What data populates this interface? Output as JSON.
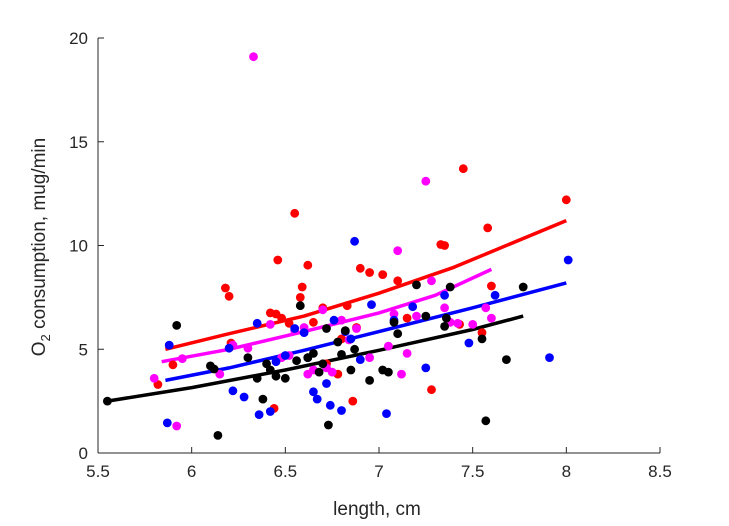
{
  "chart_data": {
    "type": "scatter",
    "xlabel": "length, cm",
    "ylabel_main": "O",
    "ylabel_sub": "2",
    "ylabel_rest": " consumption, mug/min",
    "xlim": [
      5.5,
      8.5
    ],
    "ylim": [
      0,
      20
    ],
    "xticks": [
      5.5,
      6,
      6.5,
      7,
      7.5,
      8,
      8.5
    ],
    "xtick_labels": [
      "5.5",
      "6",
      "6.5",
      "7",
      "7.5",
      "8",
      "8.5"
    ],
    "yticks": [
      0,
      5,
      10,
      15,
      20
    ],
    "ytick_labels": [
      "0",
      "5",
      "10",
      "15",
      "20"
    ],
    "grid": false,
    "legend": "none",
    "series": [
      {
        "color": "#ff0000",
        "fit": [
          [
            5.86,
            5.0
          ],
          [
            6.2,
            5.75
          ],
          [
            6.6,
            6.6
          ],
          [
            7.0,
            7.7
          ],
          [
            7.4,
            8.95
          ],
          [
            8.0,
            11.2
          ]
        ],
        "points": [
          [
            5.82,
            3.3
          ],
          [
            5.9,
            4.25
          ],
          [
            6.18,
            7.95
          ],
          [
            6.2,
            7.55
          ],
          [
            6.21,
            5.3
          ],
          [
            6.42,
            6.75
          ],
          [
            6.44,
            2.15
          ],
          [
            6.45,
            6.7
          ],
          [
            6.46,
            9.3
          ],
          [
            6.48,
            6.5
          ],
          [
            6.52,
            6.25
          ],
          [
            6.55,
            11.55
          ],
          [
            6.58,
            7.5
          ],
          [
            6.59,
            8.0
          ],
          [
            6.62,
            9.05
          ],
          [
            6.65,
            6.3
          ],
          [
            6.7,
            7.0
          ],
          [
            6.72,
            4.3
          ],
          [
            6.78,
            3.8
          ],
          [
            6.8,
            5.5
          ],
          [
            6.83,
            7.1
          ],
          [
            6.86,
            2.5
          ],
          [
            6.88,
            6.05
          ],
          [
            6.9,
            8.9
          ],
          [
            6.95,
            8.7
          ],
          [
            7.02,
            8.6
          ],
          [
            7.1,
            8.3
          ],
          [
            7.15,
            6.5
          ],
          [
            7.28,
            3.05
          ],
          [
            7.33,
            10.05
          ],
          [
            7.35,
            10.0
          ],
          [
            7.43,
            6.2
          ],
          [
            7.45,
            13.7
          ],
          [
            7.55,
            5.8
          ],
          [
            7.58,
            10.85
          ],
          [
            7.6,
            8.05
          ],
          [
            8.0,
            12.2
          ]
        ]
      },
      {
        "color": "#ff00ff",
        "fit": [
          [
            5.84,
            4.4
          ],
          [
            6.2,
            5.0
          ],
          [
            6.6,
            5.85
          ],
          [
            7.0,
            6.75
          ],
          [
            7.3,
            7.6
          ],
          [
            7.6,
            8.85
          ]
        ],
        "points": [
          [
            5.8,
            3.6
          ],
          [
            5.92,
            1.3
          ],
          [
            5.95,
            4.55
          ],
          [
            6.15,
            3.8
          ],
          [
            6.22,
            5.2
          ],
          [
            6.3,
            5.05
          ],
          [
            6.33,
            19.1
          ],
          [
            6.42,
            6.2
          ],
          [
            6.48,
            4.6
          ],
          [
            6.52,
            4.7
          ],
          [
            6.55,
            5.9
          ],
          [
            6.6,
            6.05
          ],
          [
            6.62,
            3.8
          ],
          [
            6.65,
            4.0
          ],
          [
            6.7,
            6.9
          ],
          [
            6.72,
            4.1
          ],
          [
            6.75,
            3.9
          ],
          [
            6.8,
            6.4
          ],
          [
            6.84,
            5.45
          ],
          [
            6.88,
            6.0
          ],
          [
            6.95,
            4.6
          ],
          [
            7.05,
            5.15
          ],
          [
            7.08,
            6.7
          ],
          [
            7.1,
            9.75
          ],
          [
            7.12,
            3.8
          ],
          [
            7.15,
            4.8
          ],
          [
            7.2,
            6.6
          ],
          [
            7.25,
            13.1
          ],
          [
            7.28,
            8.3
          ],
          [
            7.35,
            7.0
          ],
          [
            7.38,
            6.3
          ],
          [
            7.42,
            6.25
          ],
          [
            7.5,
            6.2
          ],
          [
            7.57,
            7.0
          ],
          [
            7.6,
            6.5
          ]
        ]
      },
      {
        "color": "#0000ff",
        "fit": [
          [
            5.86,
            3.5
          ],
          [
            6.2,
            4.1
          ],
          [
            6.6,
            4.95
          ],
          [
            7.0,
            5.85
          ],
          [
            7.5,
            7.0
          ],
          [
            8.0,
            8.2
          ]
        ],
        "points": [
          [
            5.88,
            5.2
          ],
          [
            5.87,
            1.45
          ],
          [
            6.2,
            5.05
          ],
          [
            6.22,
            3.0
          ],
          [
            6.28,
            2.7
          ],
          [
            6.35,
            6.25
          ],
          [
            6.36,
            1.85
          ],
          [
            6.42,
            2.0
          ],
          [
            6.45,
            4.4
          ],
          [
            6.5,
            4.7
          ],
          [
            6.55,
            6.0
          ],
          [
            6.6,
            5.8
          ],
          [
            6.62,
            4.6
          ],
          [
            6.65,
            2.95
          ],
          [
            6.67,
            2.6
          ],
          [
            6.72,
            3.35
          ],
          [
            6.74,
            2.3
          ],
          [
            6.76,
            6.4
          ],
          [
            6.8,
            2.05
          ],
          [
            6.82,
            5.85
          ],
          [
            6.85,
            5.5
          ],
          [
            6.87,
            10.2
          ],
          [
            6.9,
            4.5
          ],
          [
            6.96,
            7.15
          ],
          [
            7.04,
            1.9
          ],
          [
            7.08,
            6.4
          ],
          [
            7.18,
            7.05
          ],
          [
            7.25,
            4.1
          ],
          [
            7.35,
            7.6
          ],
          [
            7.48,
            5.3
          ],
          [
            7.62,
            7.6
          ],
          [
            7.91,
            4.6
          ],
          [
            8.01,
            9.3
          ]
        ]
      },
      {
        "color": "#000000",
        "fit": [
          [
            5.55,
            2.5
          ],
          [
            6.0,
            3.15
          ],
          [
            6.5,
            4.0
          ],
          [
            7.0,
            4.95
          ],
          [
            7.5,
            5.95
          ],
          [
            7.77,
            6.6
          ]
        ],
        "points": [
          [
            5.55,
            2.5
          ],
          [
            5.92,
            6.15
          ],
          [
            6.1,
            4.2
          ],
          [
            6.12,
            4.05
          ],
          [
            6.14,
            0.85
          ],
          [
            6.3,
            4.6
          ],
          [
            6.35,
            3.6
          ],
          [
            6.38,
            2.6
          ],
          [
            6.4,
            4.3
          ],
          [
            6.42,
            4.0
          ],
          [
            6.45,
            3.7
          ],
          [
            6.5,
            3.6
          ],
          [
            6.56,
            4.45
          ],
          [
            6.58,
            7.1
          ],
          [
            6.62,
            4.6
          ],
          [
            6.65,
            4.8
          ],
          [
            6.68,
            3.9
          ],
          [
            6.7,
            4.3
          ],
          [
            6.72,
            6.0
          ],
          [
            6.73,
            1.35
          ],
          [
            6.78,
            5.35
          ],
          [
            6.8,
            4.75
          ],
          [
            6.82,
            5.9
          ],
          [
            6.85,
            4.0
          ],
          [
            6.87,
            5.0
          ],
          [
            6.95,
            3.5
          ],
          [
            7.02,
            4.0
          ],
          [
            7.05,
            3.9
          ],
          [
            7.08,
            6.3
          ],
          [
            7.1,
            5.75
          ],
          [
            7.2,
            8.1
          ],
          [
            7.25,
            6.6
          ],
          [
            7.35,
            6.1
          ],
          [
            7.36,
            6.5
          ],
          [
            7.38,
            8.0
          ],
          [
            7.55,
            5.5
          ],
          [
            7.57,
            1.55
          ],
          [
            7.68,
            4.5
          ],
          [
            7.77,
            8.0
          ]
        ]
      }
    ]
  }
}
